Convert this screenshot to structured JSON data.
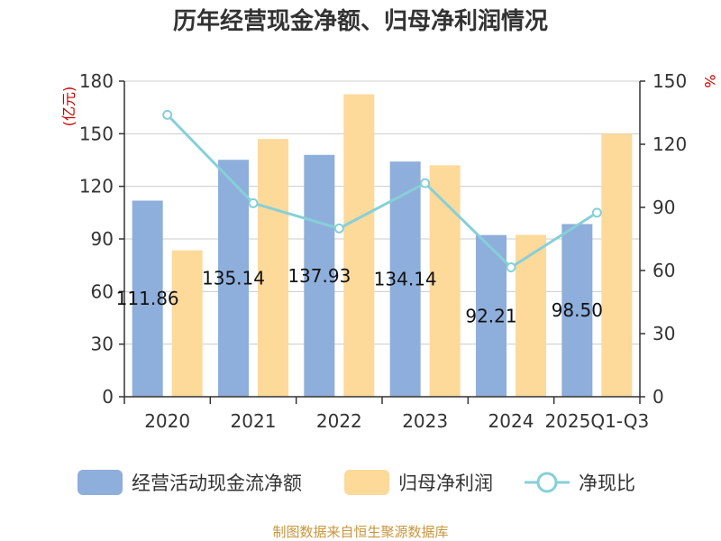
{
  "chart_data": {
    "type": "bar",
    "title": "历年经营现金净额、归母净利润情况",
    "categories": [
      "2020",
      "2021",
      "2022",
      "2023",
      "2024",
      "2025Q1-Q3"
    ],
    "left_axis": {
      "unit": "(亿元)",
      "ylim": [
        0,
        180
      ],
      "ticks": [
        0,
        30,
        60,
        90,
        120,
        150,
        180
      ]
    },
    "right_axis": {
      "unit": "%",
      "ylim": [
        0,
        150
      ],
      "ticks": [
        0,
        30,
        60,
        90,
        120,
        150
      ]
    },
    "series": [
      {
        "name": "经营活动现金流净额",
        "kind": "bar",
        "axis": "left",
        "color": "#8eaedb",
        "values": [
          111.86,
          135.14,
          137.93,
          134.14,
          92.21,
          98.5
        ],
        "labels": [
          "111.86",
          "135.14",
          "137.93",
          "134.14",
          "92.21",
          "98.50"
        ]
      },
      {
        "name": "归母净利润",
        "kind": "bar",
        "axis": "left",
        "color": "#fdd99a",
        "values": [
          83.5,
          147.0,
          172.5,
          132.0,
          92.3,
          150.0
        ]
      },
      {
        "name": "净现比",
        "kind": "line",
        "axis": "right",
        "color": "#86d0d8",
        "values": [
          134.0,
          92.0,
          80.0,
          101.5,
          61.5,
          87.5
        ]
      }
    ],
    "grid": true,
    "legend": "bottom"
  },
  "footer": {
    "source": "制图数据来自恒生聚源数据库"
  }
}
